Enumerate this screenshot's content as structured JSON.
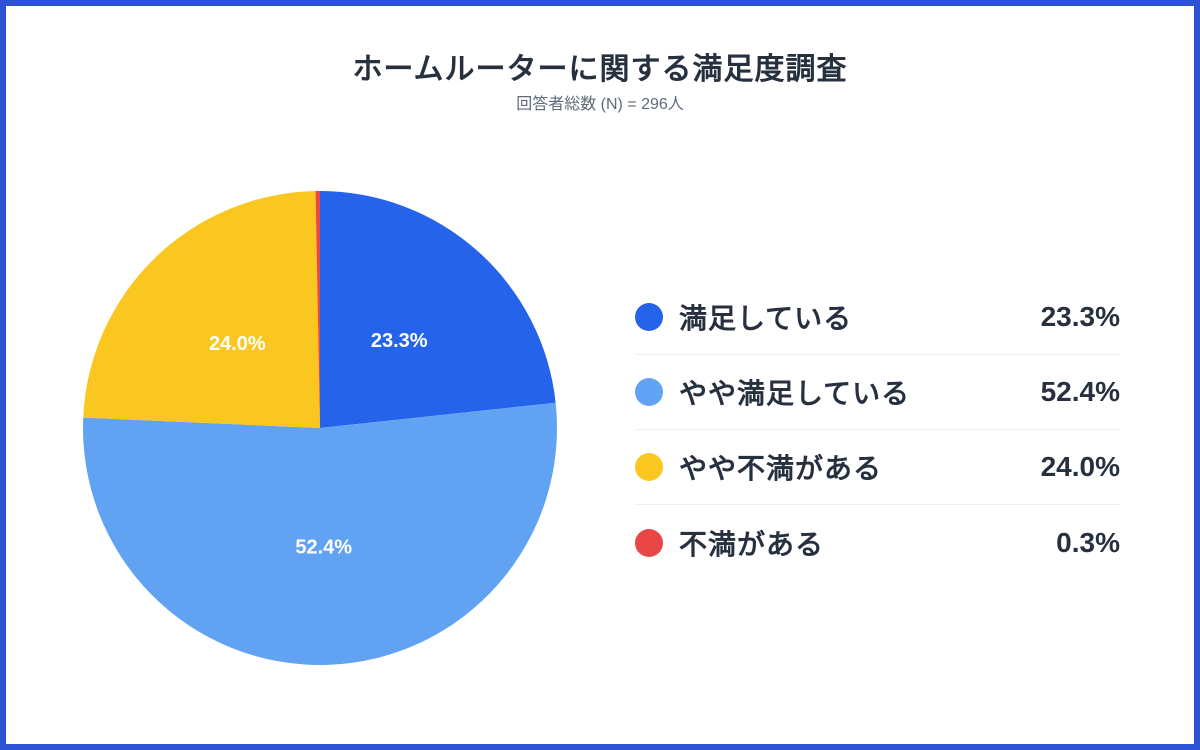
{
  "style": {
    "border_color": "#2d52d3",
    "background": "#ffffff",
    "title_color": "#27303f",
    "subtitle_color": "#5e6b7b",
    "legend_text_color": "#27303f",
    "divider_color": "#edeff3",
    "slice_label_color": "#ffffff"
  },
  "chart_data": {
    "type": "pie",
    "title": "ホームルーターに関する満足度調査",
    "subtitle": "回答者総数 (N) = 296人",
    "respondents_n": 296,
    "start_angle_deg": 0,
    "direction": "clockwise",
    "legend_position": "right",
    "slice_label_min_pct": 1,
    "segments": [
      {
        "label": "満足している",
        "value": 23.3,
        "display": "23.3%",
        "color": "#2563eb"
      },
      {
        "label": "やや満足している",
        "value": 52.4,
        "display": "52.4%",
        "color": "#61a3f2"
      },
      {
        "label": "やや不満がある",
        "value": 24.0,
        "display": "24.0%",
        "color": "#fac620"
      },
      {
        "label": "不満がある",
        "value": 0.3,
        "display": "0.3%",
        "color": "#e94747"
      }
    ]
  }
}
